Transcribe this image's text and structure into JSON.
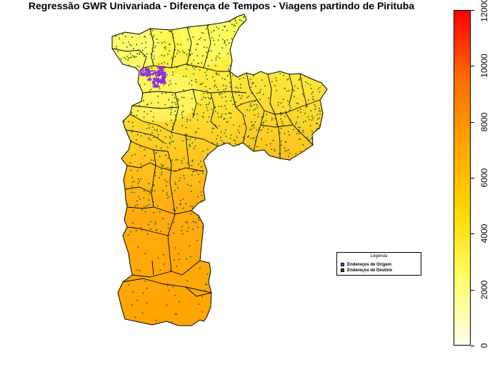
{
  "title": "Regressão GWR Univariada - Diferença de Tempos - Viagens partindo de Pirituba",
  "legend": {
    "title": "Legenda",
    "items": [
      {
        "label": "Endereços de Origem",
        "color": "#8a2be2"
      },
      {
        "label": "Endereços de Destino",
        "color": "#1a5c1a"
      }
    ]
  },
  "colorbar": {
    "min": 0,
    "max": 12000,
    "tick_labels": [
      "0",
      "2000",
      "4000",
      "6000",
      "8000",
      "10000",
      "12000"
    ],
    "colors": [
      "#fffde8",
      "#ffff66",
      "#ffd700",
      "#ffa500",
      "#ff6a00",
      "#ff0000"
    ]
  },
  "colors": {
    "origin_points": "#8a2be2",
    "destination_points": "#1a5c1a",
    "boundaries": "#000000"
  }
}
